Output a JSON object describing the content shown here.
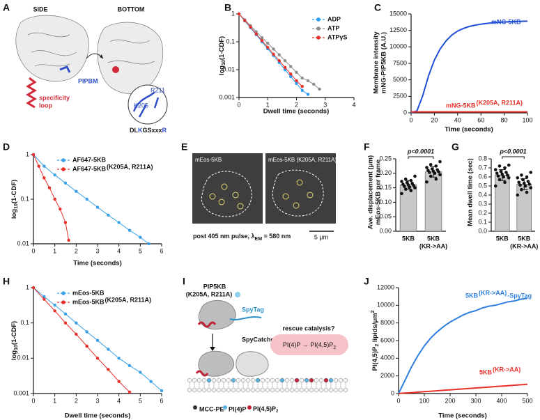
{
  "panel_labels": [
    "A",
    "B",
    "C",
    "D",
    "E",
    "F",
    "G",
    "H",
    "I",
    "J"
  ],
  "structure": {
    "side": "SIDE",
    "bottom": "BOTTOM",
    "pipbm": "PIPBM",
    "loop": [
      "specificity",
      "loop"
    ],
    "residues": [
      "K205",
      "R211"
    ],
    "motif": [
      "DL",
      "K",
      "GSxxx",
      "R"
    ]
  },
  "imaging": {
    "left": "mEos-5KB",
    "right": "mEos-5KB (K205A, R211A)",
    "caption": [
      "post 405 nm pulse, λ",
      "EM",
      " = 580 nm"
    ],
    "scale_bar": "5 μm"
  },
  "schematic": {
    "protein": "PIP5KB",
    "mutant": "(K205A, R211A)",
    "spytag": "SpyTag",
    "spycatcher": "SpyCatcher",
    "question": "rescue catalysis?",
    "reaction": [
      "PI(4)P",
      "→",
      "PI(4,5)P",
      "2"
    ],
    "legend": [
      "MCC-PE",
      "PI(4)P",
      "PI(4,5)P",
      "2"
    ]
  },
  "chart_data": [
    {
      "type": "line",
      "log_y": true,
      "markers": true,
      "xlim": [
        0,
        4
      ],
      "ylim": [
        0.001,
        1
      ],
      "xticks": [
        0,
        1,
        2,
        3,
        4
      ],
      "yticks": [
        1,
        0.1,
        0.01,
        0.001
      ],
      "xlabel": "Dwell time (seconds)",
      "ylabel": [
        "log",
        "10",
        "(1-CDF)"
      ],
      "legend": "upper right",
      "series": [
        {
          "name": "ADP",
          "color": "#2a9df4",
          "x": [
            0,
            0.2,
            0.4,
            0.6,
            0.8,
            1,
            1.2,
            1.4,
            1.6,
            1.8,
            2,
            2.2,
            2.4
          ],
          "values": [
            1,
            0.56,
            0.32,
            0.18,
            0.1,
            0.056,
            0.032,
            0.018,
            0.01,
            0.0056,
            0.0032,
            0.0018,
            0.0013
          ]
        },
        {
          "name": "ATP",
          "color": "#8c8c8c",
          "x": [
            0,
            0.2,
            0.4,
            0.6,
            0.8,
            1,
            1.2,
            1.4,
            1.6,
            1.8,
            2,
            2.2,
            2.4,
            2.6,
            2.8
          ],
          "values": [
            1,
            0.62,
            0.38,
            0.23,
            0.14,
            0.089,
            0.055,
            0.034,
            0.021,
            0.013,
            0.008,
            0.005,
            0.004,
            0.003,
            0.002
          ]
        },
        {
          "name": "ATPγS",
          "color": "#e8302a",
          "x": [
            0,
            0.2,
            0.4,
            0.6,
            0.8,
            1,
            1.2,
            1.4,
            1.6,
            1.8,
            2,
            2.2
          ],
          "values": [
            1,
            0.58,
            0.34,
            0.19,
            0.11,
            0.063,
            0.036,
            0.021,
            0.012,
            0.007,
            0.004,
            0.0025
          ]
        }
      ]
    },
    {
      "type": "line",
      "xlim": [
        0,
        100
      ],
      "ylim": [
        0,
        15000
      ],
      "xticks": [
        0,
        20,
        40,
        60,
        80,
        100
      ],
      "yticks": [
        0,
        2500,
        5000,
        7500,
        10000,
        12500,
        15000
      ],
      "xlabel": "Time (seconds)",
      "ylabel": [
        "Membrane intensity",
        "mNG-PIP5KB (A.U.)"
      ],
      "x": [
        0,
        5,
        10,
        15,
        20,
        25,
        30,
        35,
        40,
        45,
        50,
        55,
        60,
        65,
        70,
        75,
        80,
        85,
        90,
        95,
        100
      ],
      "series": [
        {
          "name": "mNG-5KB",
          "color": "#1f4fd6",
          "values": [
            0,
            300,
            2600,
            5600,
            8000,
            9700,
            10900,
            11800,
            12400,
            12800,
            13100,
            13300,
            13450,
            13560,
            13650,
            13720,
            13780,
            13820,
            13850,
            13880,
            13900
          ]
        },
        {
          "name": "mNG-5KB",
          "name_suffix": "(K205A, R211A)",
          "color": "#e8302a",
          "values": [
            150,
            150,
            150,
            150,
            150,
            150,
            150,
            150,
            150,
            150,
            150,
            150,
            150,
            150,
            150,
            150,
            150,
            150,
            150,
            150,
            150
          ]
        }
      ]
    },
    {
      "type": "line",
      "log_y": true,
      "markers": true,
      "xlim": [
        0,
        6
      ],
      "ylim": [
        0.01,
        1
      ],
      "xticks": [
        0,
        1,
        2,
        3,
        4,
        5,
        6
      ],
      "yticks": [
        1,
        0.1,
        0.01
      ],
      "xlabel": "Time (seconds)",
      "ylabel": [
        "log",
        "10",
        "(1-CDF)"
      ],
      "legend": "upper right",
      "series": [
        {
          "name": "AF647-5KB",
          "color": "#3aa0e8",
          "x": [
            0,
            0.5,
            1,
            1.5,
            2,
            2.5,
            3,
            3.5,
            4,
            4.5,
            5,
            5.4
          ],
          "values": [
            1,
            0.55,
            0.35,
            0.23,
            0.15,
            0.1,
            0.066,
            0.044,
            0.03,
            0.02,
            0.014,
            0.01
          ]
        },
        {
          "name": "AF647-5KB",
          "name_suffix": "(K205A, R211A)",
          "color": "#e8302a",
          "x": [
            0,
            0.25,
            0.5,
            0.75,
            1,
            1.25,
            1.5,
            1.65
          ],
          "values": [
            1,
            0.55,
            0.3,
            0.18,
            0.1,
            0.06,
            0.03,
            0.012
          ]
        }
      ]
    },
    {
      "type": "bar",
      "categories": [
        "5KB",
        "5KB"
      ],
      "category_note": "(KR->AA)",
      "values": [
        0.16,
        0.205
      ],
      "errors": [
        0.015,
        0.018
      ],
      "color": "#c8c8c8",
      "points": [
        [
          0.13,
          0.14,
          0.145,
          0.15,
          0.152,
          0.155,
          0.158,
          0.16,
          0.162,
          0.165,
          0.168,
          0.172,
          0.175,
          0.18,
          0.19
        ],
        [
          0.17,
          0.18,
          0.19,
          0.195,
          0.2,
          0.203,
          0.205,
          0.207,
          0.21,
          0.212,
          0.215,
          0.22,
          0.225,
          0.23,
          0.24
        ]
      ],
      "ylim": [
        0,
        0.25
      ],
      "yticks": [
        {
          "value": 0,
          "label": "0.00"
        },
        0.05,
        {
          "value": 0.1,
          "label": "0.10"
        },
        0.15,
        {
          "value": 0.2,
          "label": "0.20"
        },
        0.25
      ],
      "ylabel": [
        "Ave. displacement (μm)",
        "mEos-5KB per frame"
      ],
      "annotation": "p<0.0001"
    },
    {
      "type": "bar",
      "categories": [
        "5KB",
        "5KB"
      ],
      "category_note": "(KR->AA)",
      "values": [
        0.62,
        0.52
      ],
      "errors": [
        0.06,
        0.06
      ],
      "color": "#c8c8c8",
      "points": [
        [
          0.5,
          0.54,
          0.57,
          0.59,
          0.6,
          0.61,
          0.62,
          0.63,
          0.64,
          0.65,
          0.66,
          0.68,
          0.7,
          0.72,
          0.73
        ],
        [
          0.4,
          0.43,
          0.46,
          0.48,
          0.5,
          0.51,
          0.52,
          0.53,
          0.54,
          0.55,
          0.57,
          0.59,
          0.6,
          0.62,
          0.65
        ]
      ],
      "ylim": [
        0,
        0.8
      ],
      "yticks": [
        {
          "value": 0,
          "label": "0.0"
        },
        0.1,
        0.2,
        0.3,
        0.4,
        0.5,
        0.6,
        0.7,
        0.8
      ],
      "ylabel": "Mean dwell time (sec)",
      "annotation": "p<0.0001"
    },
    {
      "type": "line",
      "log_y": true,
      "markers": true,
      "xlim": [
        0,
        6
      ],
      "ylim": [
        0.001,
        1
      ],
      "xticks": [
        0,
        1,
        2,
        3,
        4,
        5,
        6
      ],
      "yticks": [
        1,
        0.1,
        0.01,
        0.001
      ],
      "xlabel": "Dwell time (seconds)",
      "ylabel": [
        "log",
        "10",
        "(1-CDF)"
      ],
      "legend": "upper right",
      "series": [
        {
          "name": "mEos-5KB",
          "color": "#3aa0e8",
          "x": [
            0,
            0.5,
            1,
            1.5,
            2,
            2.5,
            3,
            3.5,
            4,
            4.5,
            5,
            5.5,
            6
          ],
          "values": [
            1,
            0.56,
            0.32,
            0.18,
            0.1,
            0.056,
            0.032,
            0.018,
            0.01,
            0.0062,
            0.004,
            0.0022,
            0.0012
          ]
        },
        {
          "name": "mEos-5KB",
          "name_suffix": "(K205A, R211A)",
          "color": "#e8302a",
          "x": [
            0,
            0.5,
            1,
            1.5,
            2,
            2.5,
            3,
            3.5,
            4,
            4.5
          ],
          "values": [
            1,
            0.47,
            0.22,
            0.1,
            0.048,
            0.022,
            0.01,
            0.0048,
            0.0022,
            0.0011
          ]
        }
      ]
    },
    {
      "type": "line",
      "xlim": [
        0,
        500
      ],
      "ylim": [
        0,
        12000
      ],
      "xticks": [
        0,
        100,
        200,
        300,
        400,
        500
      ],
      "yticks": [
        0,
        2000,
        4000,
        6000,
        8000,
        10000,
        12000
      ],
      "xlabel": "Time (seconds)",
      "ylabel": [
        "PI(4,5)P",
        "2",
        " lipids/μm",
        "2"
      ],
      "x": [
        0,
        25,
        50,
        75,
        100,
        125,
        150,
        175,
        200,
        225,
        250,
        275,
        300,
        325,
        350,
        375,
        400,
        425,
        450,
        475,
        500
      ],
      "series": [
        {
          "name": "5KB",
          "name_suffix": "(KR->AA)",
          "name_end": "-SpyTag",
          "color": "#2f7fe0",
          "values": [
            0,
            1500,
            3000,
            4300,
            5400,
            6300,
            7000,
            7600,
            8100,
            8500,
            8900,
            9200,
            9400,
            9700,
            9900,
            10000,
            10200,
            10400,
            10500,
            10700,
            10800
          ]
        },
        {
          "name": "5KB",
          "name_suffix": "(KR->AA)",
          "color": "#e8302a",
          "values": [
            0,
            52,
            105,
            158,
            210,
            262,
            315,
            368,
            420,
            472,
            525,
            578,
            630,
            682,
            735,
            788,
            840,
            892,
            945,
            998,
            1050
          ]
        }
      ]
    }
  ]
}
